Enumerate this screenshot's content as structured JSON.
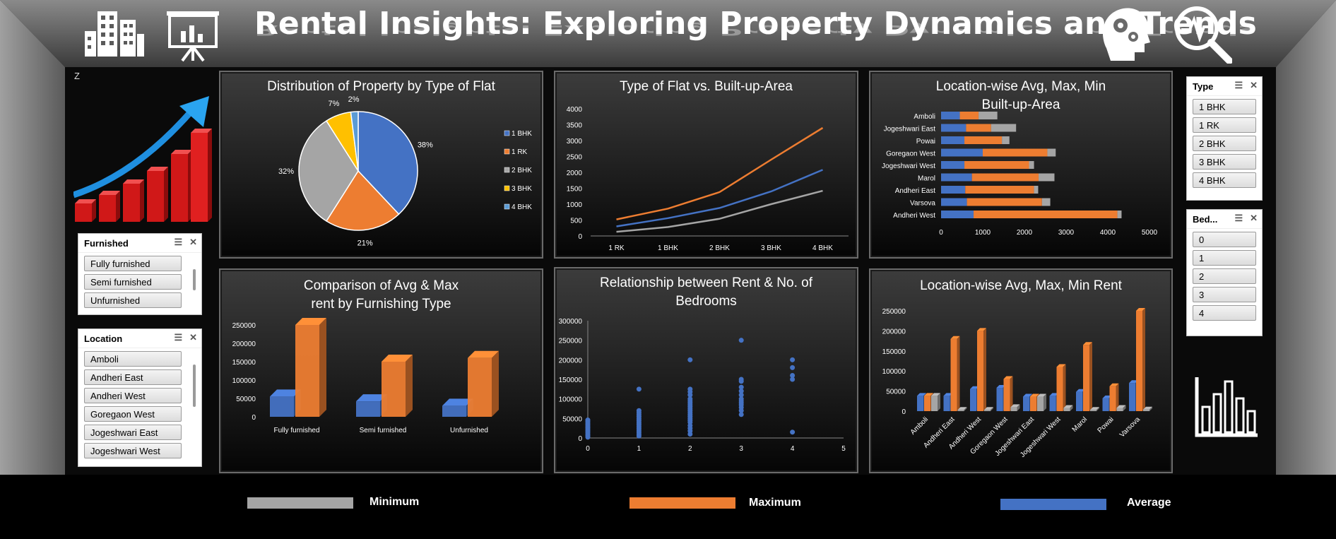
{
  "header": {
    "title": "Rental Insights: Exploring Property Dynamics and Trends"
  },
  "stray_char": "Z",
  "colors": {
    "average": "#4472C4",
    "maximum": "#ED7D31",
    "minimum": "#A5A5A5",
    "rk1": "#ED7D31",
    "bhk1": "#4472C4",
    "bhk2": "#A5A5A5",
    "bhk3": "#FFC000",
    "bhk4": "#5B9BD5"
  },
  "slicers": {
    "furnished": {
      "title": "Furnished",
      "items": [
        "Fully furnished",
        "Semi furnished",
        "Unfurnished"
      ]
    },
    "location": {
      "title": "Location",
      "items": [
        "Amboli",
        "Andheri East",
        "Andheri West",
        "Goregaon West",
        "Jogeshwari East",
        "Jogeshwari West"
      ]
    },
    "type": {
      "title": "Type",
      "items": [
        "1 BHK",
        "1 RK",
        "2 BHK",
        "3 BHK",
        "4 BHK"
      ]
    },
    "bedrooms": {
      "title": "Bed...",
      "items": [
        "0",
        "1",
        "2",
        "3",
        "4"
      ]
    }
  },
  "bottom_legend": {
    "minimum": "Minimum",
    "maximum": "Maximum",
    "average": "Average"
  },
  "chart_data": [
    {
      "id": "pie",
      "type": "pie",
      "title": "Distribution of Property by Type of Flat",
      "categories": [
        "1 BHK",
        "1 RK",
        "2 BHK",
        "3 BHK",
        "4 BHK"
      ],
      "values": [
        38,
        21,
        32,
        7,
        2
      ],
      "value_labels": [
        "38%",
        "21%",
        "32%",
        "7%",
        "2%"
      ],
      "legend_position": "right"
    },
    {
      "id": "line",
      "type": "line",
      "title": "Type of Flat vs. Built-up-Area",
      "categories": [
        "1 RK",
        "1 BHK",
        "2 BHK",
        "3 BHK",
        "4 BHK"
      ],
      "ylim": [
        0,
        4000
      ],
      "yticks": [
        "0",
        "500",
        "1000",
        "1500",
        "2000",
        "2500",
        "3000",
        "3500",
        "4000"
      ],
      "series": [
        {
          "color": "#ED7D31",
          "values": [
            520,
            860,
            1380,
            2400,
            3400
          ]
        },
        {
          "color": "#4472C4",
          "values": [
            300,
            560,
            880,
            1400,
            2080
          ]
        },
        {
          "color": "#A5A5A5",
          "values": [
            130,
            280,
            540,
            1000,
            1420
          ]
        }
      ]
    },
    {
      "id": "loc-area",
      "type": "bar",
      "orientation": "horizontal",
      "stacked": true,
      "title": "Location-wise Avg, Max, Min Built-up-Area",
      "categories": [
        "Amboli",
        "Jogeshwari East",
        "Powai",
        "Goregaon West",
        "Jogeshwari West",
        "Marol",
        "Andheri East",
        "Varsova",
        "Andheri West"
      ],
      "xlim": [
        0,
        5000
      ],
      "xticks": [
        "0",
        "1000",
        "2000",
        "3000",
        "4000",
        "5000"
      ],
      "series": [
        {
          "color": "#4472C4",
          "values": [
            450,
            600,
            560,
            1000,
            560,
            740,
            580,
            620,
            780
          ]
        },
        {
          "color": "#ED7D31",
          "values": [
            450,
            600,
            900,
            1550,
            1550,
            1600,
            1650,
            1800,
            3450
          ]
        },
        {
          "color": "#A5A5A5",
          "values": [
            450,
            600,
            180,
            200,
            120,
            380,
            100,
            200,
            100
          ]
        }
      ]
    },
    {
      "id": "furnish-rent",
      "type": "bar",
      "title": "Comparison of Avg & Max rent by Furnishing Type",
      "categories": [
        "Fully furnished",
        "Semi furnished",
        "Unfurnished"
      ],
      "ylim": [
        0,
        250000
      ],
      "yticks": [
        "0",
        "50000",
        "100000",
        "150000",
        "200000",
        "250000"
      ],
      "series": [
        {
          "color": "#4472C4",
          "values": [
            55000,
            42000,
            30000
          ]
        },
        {
          "color": "#ED7D31",
          "values": [
            250000,
            150000,
            160000
          ]
        }
      ]
    },
    {
      "id": "scatter",
      "type": "scatter",
      "title": "Relationship between Rent & No. of Bedrooms",
      "xlim": [
        0,
        5
      ],
      "ylim": [
        0,
        300000
      ],
      "xticks": [
        "0",
        "1",
        "2",
        "3",
        "4",
        "5"
      ],
      "yticks": [
        "0",
        "50000",
        "100000",
        "150000",
        "200000",
        "250000",
        "300000"
      ],
      "points": [
        [
          0,
          2000
        ],
        [
          0,
          6000
        ],
        [
          0,
          10000
        ],
        [
          0,
          14000
        ],
        [
          0,
          18000
        ],
        [
          0,
          22000
        ],
        [
          0,
          26000
        ],
        [
          0,
          30000
        ],
        [
          0,
          34000
        ],
        [
          0,
          38000
        ],
        [
          0,
          42000
        ],
        [
          0,
          46000
        ],
        [
          1,
          5000
        ],
        [
          1,
          10000
        ],
        [
          1,
          15000
        ],
        [
          1,
          20000
        ],
        [
          1,
          25000
        ],
        [
          1,
          30000
        ],
        [
          1,
          35000
        ],
        [
          1,
          40000
        ],
        [
          1,
          45000
        ],
        [
          1,
          50000
        ],
        [
          1,
          55000
        ],
        [
          1,
          60000
        ],
        [
          1,
          65000
        ],
        [
          1,
          70000
        ],
        [
          1,
          125000
        ],
        [
          2,
          10000
        ],
        [
          2,
          18000
        ],
        [
          2,
          25000
        ],
        [
          2,
          32000
        ],
        [
          2,
          40000
        ],
        [
          2,
          45000
        ],
        [
          2,
          50000
        ],
        [
          2,
          55000
        ],
        [
          2,
          60000
        ],
        [
          2,
          65000
        ],
        [
          2,
          70000
        ],
        [
          2,
          75000
        ],
        [
          2,
          80000
        ],
        [
          2,
          85000
        ],
        [
          2,
          90000
        ],
        [
          2,
          95000
        ],
        [
          2,
          100000
        ],
        [
          2,
          110000
        ],
        [
          2,
          118000
        ],
        [
          2,
          125000
        ],
        [
          2,
          200000
        ],
        [
          3,
          60000
        ],
        [
          3,
          70000
        ],
        [
          3,
          78000
        ],
        [
          3,
          85000
        ],
        [
          3,
          90000
        ],
        [
          3,
          95000
        ],
        [
          3,
          100000
        ],
        [
          3,
          110000
        ],
        [
          3,
          120000
        ],
        [
          3,
          130000
        ],
        [
          3,
          145000
        ],
        [
          3,
          150000
        ],
        [
          3,
          250000
        ],
        [
          4,
          15000
        ],
        [
          4,
          150000
        ],
        [
          4,
          160000
        ],
        [
          4,
          180000
        ],
        [
          4,
          200000
        ]
      ]
    },
    {
      "id": "loc-rent",
      "type": "bar",
      "title": "Location-wise Avg, Max, Min Rent",
      "categories": [
        "Amboli",
        "Andheri East",
        "Andheri West",
        "Goregaon West",
        "Jogeshwari East",
        "Jogeshwari West",
        "Marol",
        "Powai",
        "Varsova"
      ],
      "ylim": [
        0,
        250000
      ],
      "yticks": [
        "0",
        "50000",
        "100000",
        "150000",
        "200000",
        "250000"
      ],
      "series": [
        {
          "color": "#4472C4",
          "values": [
            38000,
            38000,
            55000,
            58000,
            36000,
            38000,
            48000,
            32000,
            70000
          ]
        },
        {
          "color": "#ED7D31",
          "values": [
            38000,
            180000,
            200000,
            80000,
            36000,
            110000,
            165000,
            62000,
            250000
          ]
        },
        {
          "color": "#A5A5A5",
          "values": [
            38000,
            3000,
            3000,
            10000,
            36000,
            8000,
            3000,
            8000,
            4000
          ]
        }
      ]
    }
  ]
}
